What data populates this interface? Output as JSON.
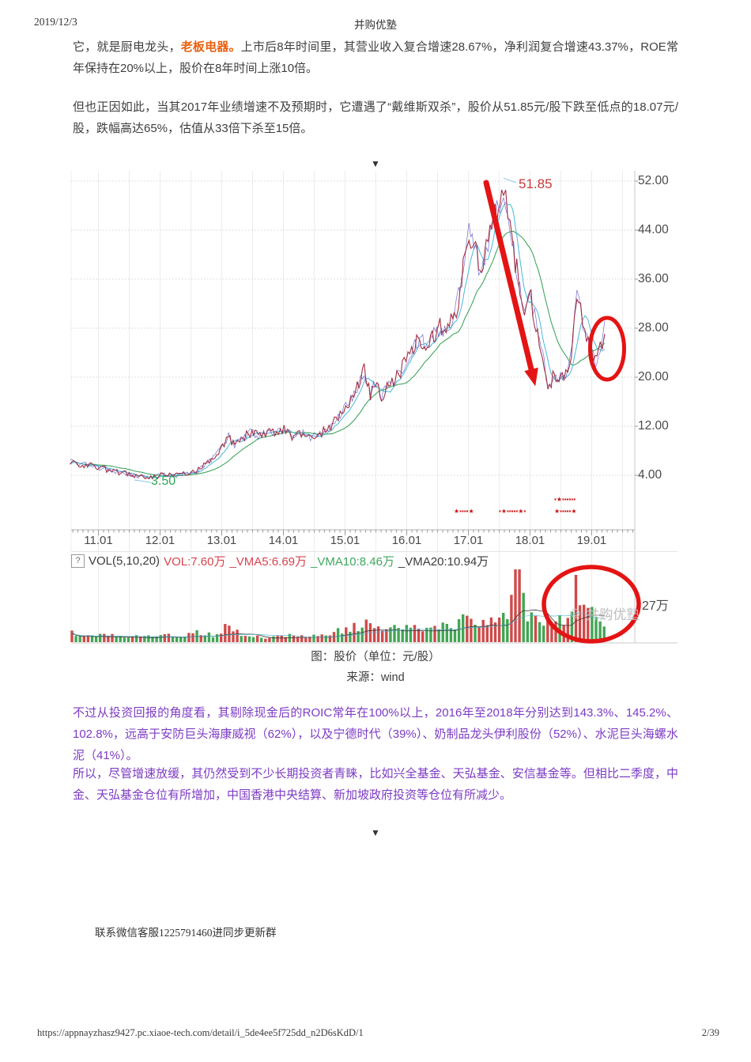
{
  "header": {
    "date": "2019/12/3",
    "site_title": "并购优塾"
  },
  "article": {
    "p1_pre": "它，就是厨电龙头，",
    "p1_brand": "老板电器。",
    "p1_post": "上市后8年时间里，其营业收入复合增速28.67%，净利润复合增速43.37%，ROE常年保持在20%以上，股价在8年时间上涨10倍。",
    "p2": "但也正因如此，当其2017年业绩增速不及预期时，它遭遇了“戴维斯双杀”，股价从51.85元/股下跌至低点的18.07元/股，跌幅高达65%，估值从33倍下杀至15倍。",
    "purple1": "不过从投资回报的角度看，其剔除现金后的ROIC常年在100%以上，2016年至2018年分别达到143.3%、145.2%、102.8%，远高于安防巨头海康威视（62%），以及宁德时代（39%）、奶制品龙头伊利股份（52%）、水泥巨头海螺水泥（41%）。",
    "purple2": "所以，尽管增速放缓，其仍然受到不少长期投资者青睐，比如兴全基金、天弘基金、安信基金等。但相比二季度，中金、天弘基金仓位有所增加，中国香港中央结算、新加坡政府投资等仓位有所减少。",
    "section_marker": "▼",
    "contact_note": "联系微信客服1225791460进同步更新群"
  },
  "caption": {
    "line1": "图：股价（单位：元/股）",
    "line2": "来源：wind"
  },
  "footer": {
    "url": "https://appnayzhasz9427.pc.xiaoe-tech.com/detail/i_5de4ee5f725dd_n2D6sKdD/1",
    "page_number": "2/39"
  },
  "colors": {
    "brand_orange": "#e8610f",
    "purple_text": "#7d3bc4",
    "annotation_red": "#e41414",
    "peak_label_red": "#c93a3a",
    "low_label_green": "#2ea65a",
    "volume_bar_red": "#cf4a4a",
    "volume_bar_green": "#43a554",
    "ma_fast_cyan": "#46b9d9",
    "ma_slow_green": "#41a55e"
  },
  "chart_data": {
    "type": "candlestick_with_volume",
    "title": "股价（单位：元/股）",
    "source": "wind",
    "x_ticks": [
      "11.01",
      "12.01",
      "13.01",
      "14.01",
      "15.01",
      "16.01",
      "17.01",
      "18.01",
      "19.01"
    ],
    "y_ticks": [
      "52.00",
      "44.00",
      "36.00",
      "28.00",
      "20.00",
      "12.00",
      "4.00"
    ],
    "y_tick_values": [
      52,
      44,
      36,
      28,
      20,
      12,
      4
    ],
    "grid": true,
    "legend_position": "volume-pane-top-left",
    "annotations": {
      "peak_label": "51.85",
      "peak_point": [
        17.58,
        51.85
      ],
      "low_label": "3.50",
      "low_point": [
        11.86,
        3.5
      ],
      "red_arrow_from_value": 51.0,
      "red_arrow_to_value": 20.0,
      "circled_recent_price": 27.8,
      "circled_volume_area": "2018-2019 spike"
    },
    "price_series": [
      [
        10.55,
        6.2
      ],
      [
        10.75,
        5.8
      ],
      [
        11.0,
        5.3
      ],
      [
        11.2,
        4.8
      ],
      [
        11.45,
        4.3
      ],
      [
        11.65,
        3.9
      ],
      [
        11.86,
        3.6
      ],
      [
        12.05,
        4.1
      ],
      [
        12.25,
        3.95
      ],
      [
        12.45,
        4.3
      ],
      [
        12.6,
        4.8
      ],
      [
        12.75,
        5.8
      ],
      [
        12.9,
        7.2
      ],
      [
        13.05,
        9.2
      ],
      [
        13.12,
        10.4
      ],
      [
        13.22,
        8.8
      ],
      [
        13.35,
        10.1
      ],
      [
        13.5,
        11.2
      ],
      [
        13.6,
        10.3
      ],
      [
        13.75,
        10.9
      ],
      [
        13.9,
        11.2
      ],
      [
        14.05,
        11.4
      ],
      [
        14.15,
        10.4
      ],
      [
        14.3,
        10.9
      ],
      [
        14.45,
        10.2
      ],
      [
        14.6,
        10.7
      ],
      [
        14.75,
        11.8
      ],
      [
        14.9,
        13.4
      ],
      [
        15.05,
        15.5
      ],
      [
        15.18,
        17.8
      ],
      [
        15.32,
        21.0
      ],
      [
        15.42,
        17.2
      ],
      [
        15.5,
        19.6
      ],
      [
        15.6,
        16.9
      ],
      [
        15.72,
        18.6
      ],
      [
        15.85,
        20.3
      ],
      [
        16.0,
        22.5
      ],
      [
        16.12,
        24.9
      ],
      [
        16.22,
        26.4
      ],
      [
        16.32,
        25.3
      ],
      [
        16.45,
        26.9
      ],
      [
        16.55,
        28.3
      ],
      [
        16.65,
        27.4
      ],
      [
        16.78,
        29.8
      ],
      [
        16.85,
        33.0
      ],
      [
        16.95,
        40.0
      ],
      [
        17.02,
        43.3
      ],
      [
        17.1,
        41.0
      ],
      [
        17.2,
        37.6
      ],
      [
        17.3,
        40.5
      ],
      [
        17.42,
        45.5
      ],
      [
        17.52,
        49.0
      ],
      [
        17.58,
        51.85
      ],
      [
        17.65,
        47.5
      ],
      [
        17.72,
        42.0
      ],
      [
        17.82,
        36.5
      ],
      [
        17.92,
        31.8
      ],
      [
        18.0,
        34.3
      ],
      [
        18.08,
        30.0
      ],
      [
        18.16,
        26.5
      ],
      [
        18.24,
        22.5
      ],
      [
        18.3,
        18.3
      ],
      [
        18.38,
        20.0
      ],
      [
        18.48,
        19.5
      ],
      [
        18.56,
        20.5
      ],
      [
        18.62,
        21.0
      ],
      [
        18.68,
        24.0
      ],
      [
        18.73,
        29.0
      ],
      [
        18.77,
        33.5
      ],
      [
        18.83,
        30.5
      ],
      [
        18.9,
        28.0
      ],
      [
        19.0,
        24.5
      ],
      [
        19.07,
        22.3
      ],
      [
        19.12,
        23.5
      ],
      [
        19.18,
        26.0
      ],
      [
        19.22,
        27.8
      ]
    ],
    "volume": {
      "help_icon": "?",
      "indicator_label": "VOL(5,10,20)",
      "legend": [
        {
          "text": "VOL:7.60万",
          "color": "#d8434f"
        },
        {
          "text": "_VMA5:6.69万",
          "color": "#d8434f"
        },
        {
          "text": "_VMA10:8.46万",
          "color": "#3fa75e"
        },
        {
          "text": "_VMA20:10.94万",
          "color": "#3c3c3c"
        }
      ],
      "right_axis_label": "27万",
      "envelope": [
        [
          10.55,
          0.16
        ],
        [
          10.8,
          0.1
        ],
        [
          11.1,
          0.13
        ],
        [
          11.4,
          0.08
        ],
        [
          11.7,
          0.1
        ],
        [
          12.0,
          0.14
        ],
        [
          12.3,
          0.08
        ],
        [
          12.6,
          0.2
        ],
        [
          12.9,
          0.12
        ],
        [
          13.1,
          0.28
        ],
        [
          13.4,
          0.12
        ],
        [
          13.7,
          0.09
        ],
        [
          14.1,
          0.11
        ],
        [
          14.5,
          0.1
        ],
        [
          14.8,
          0.16
        ],
        [
          15.1,
          0.24
        ],
        [
          15.35,
          0.32
        ],
        [
          15.6,
          0.22
        ],
        [
          15.9,
          0.26
        ],
        [
          16.1,
          0.28
        ],
        [
          16.4,
          0.22
        ],
        [
          16.7,
          0.28
        ],
        [
          16.95,
          0.38
        ],
        [
          17.2,
          0.3
        ],
        [
          17.45,
          0.34
        ],
        [
          17.65,
          0.42
        ],
        [
          17.81,
          1.0
        ],
        [
          17.95,
          0.5
        ],
        [
          18.15,
          0.32
        ],
        [
          18.35,
          0.38
        ],
        [
          18.55,
          0.45
        ],
        [
          18.68,
          0.55
        ],
        [
          18.75,
          0.92
        ],
        [
          18.9,
          0.6
        ],
        [
          19.05,
          0.5
        ],
        [
          19.15,
          0.42
        ],
        [
          19.22,
          0.35
        ]
      ]
    },
    "watermark_text": "并购优塾",
    "ex_dividend_markers": {
      "row_top": "▪★▪▪▪▪▪▪",
      "clusters": [
        "★▪▪▪▪★",
        "▪★▪▪▪▪▪★▪",
        "★▪▪▪▪▪★"
      ]
    }
  }
}
